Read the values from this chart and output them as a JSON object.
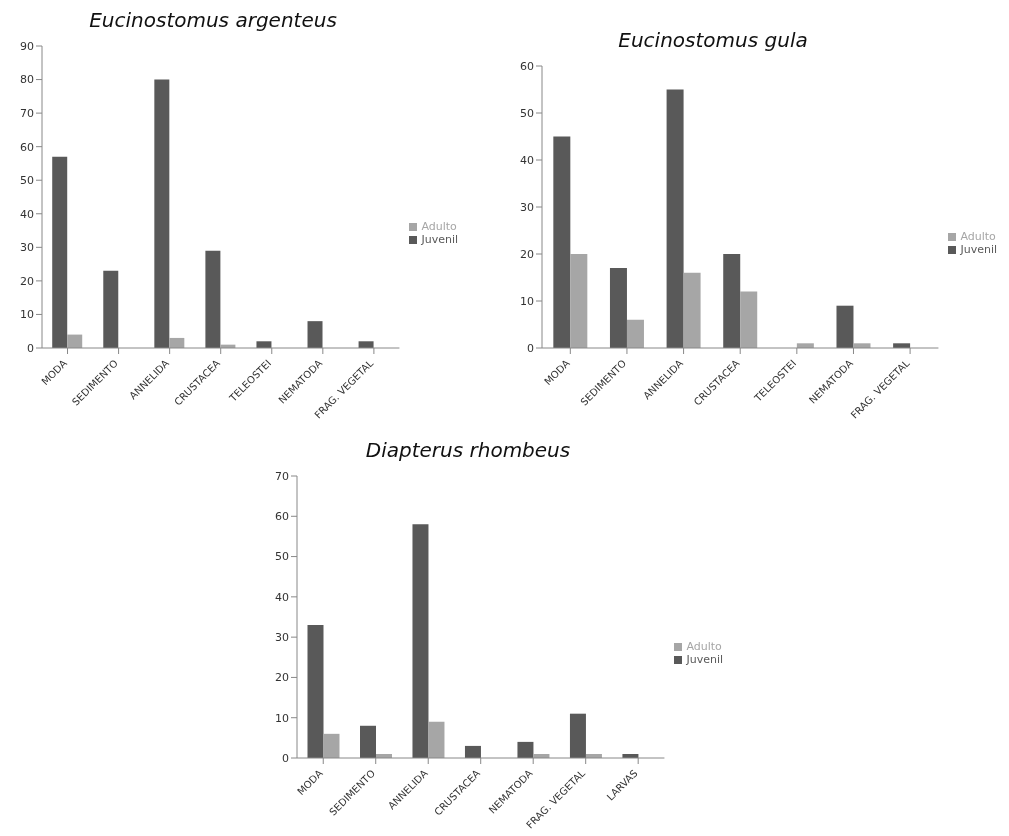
{
  "chart_data": [
    {
      "type": "bar",
      "title": "Eucinostomus argenteus",
      "categories": [
        "MODA",
        "SEDIMENTO",
        "ANNELIDA",
        "CRUSTACEA",
        "TELEOSTEI",
        "NEMATODA",
        "FRAG. VEGETAL"
      ],
      "series": [
        {
          "name": "Juvenil",
          "color": "#595959",
          "values": [
            57,
            23,
            80,
            29,
            2,
            8,
            2
          ]
        },
        {
          "name": "Adulto",
          "color": "#a6a6a6",
          "values": [
            4,
            0,
            3,
            1,
            0,
            0,
            0
          ]
        }
      ],
      "ylim": [
        0,
        90
      ],
      "yticks": [
        0,
        10,
        20,
        30,
        40,
        50,
        60,
        70,
        80,
        90
      ],
      "grid": false,
      "legend": "right"
    },
    {
      "type": "bar",
      "title": "Eucinostomus gula",
      "categories": [
        "MODA",
        "SEDIMENTO",
        "ANNELIDA",
        "CRUSTACEA",
        "TELEOSTEI",
        "NEMATODA",
        "FRAG. VEGETAL"
      ],
      "series": [
        {
          "name": "Juvenil",
          "color": "#595959",
          "values": [
            45,
            17,
            55,
            20,
            0,
            9,
            1
          ]
        },
        {
          "name": "Adulto",
          "color": "#a6a6a6",
          "values": [
            20,
            6,
            16,
            12,
            1,
            1,
            0
          ]
        }
      ],
      "ylim": [
        0,
        60
      ],
      "yticks": [
        0,
        10,
        20,
        30,
        40,
        50,
        60
      ],
      "grid": false,
      "legend": "right"
    },
    {
      "type": "bar",
      "title": "Diapterus rhombeus",
      "categories": [
        "MODA",
        "SEDIMENTO",
        "ANNELIDA",
        "CRUSTACEA",
        "NEMATODA",
        "FRAG. VEGETAL",
        "LARVAS"
      ],
      "series": [
        {
          "name": "Juvenil",
          "color": "#595959",
          "values": [
            33,
            8,
            58,
            3,
            4,
            11,
            1
          ]
        },
        {
          "name": "Adulto",
          "color": "#a6a6a6",
          "values": [
            6,
            1,
            9,
            0,
            1,
            1,
            0
          ]
        }
      ],
      "ylim": [
        0,
        70
      ],
      "yticks": [
        0,
        10,
        20,
        30,
        40,
        50,
        60,
        70
      ],
      "grid": false,
      "legend": "right"
    }
  ]
}
